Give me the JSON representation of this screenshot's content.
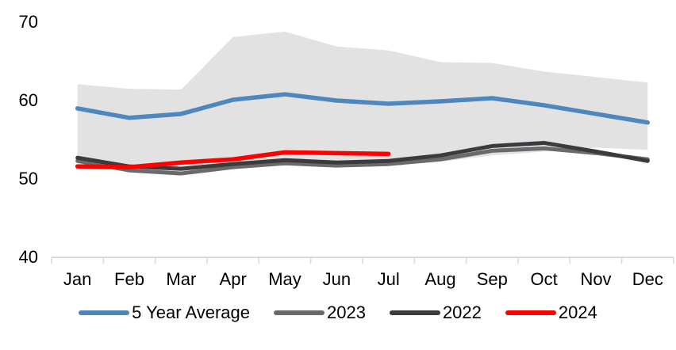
{
  "chart_data": {
    "type": "line",
    "title": "",
    "xlabel": "",
    "ylabel": "",
    "categories": [
      "Jan",
      "Feb",
      "Mar",
      "Apr",
      "May",
      "Jun",
      "Jul",
      "Aug",
      "Sep",
      "Oct",
      "Nov",
      "Dec"
    ],
    "y_ticks": [
      70,
      60,
      50,
      40
    ],
    "ylim": [
      40,
      70
    ],
    "grid": false,
    "legend_position": "bottom",
    "axis_color": "#D9D9D9",
    "text_color": "#000000",
    "band": {
      "name": "5 Year Range",
      "color": "#E2E2E2",
      "top": [
        62.1,
        61.5,
        61.4,
        68.1,
        68.8,
        66.9,
        66.4,
        64.9,
        64.8,
        63.7,
        63.0,
        62.3
      ],
      "bottom": [
        52.5,
        51.2,
        50.5,
        51.3,
        51.9,
        51.6,
        51.7,
        52.2,
        53.0,
        53.5,
        54.0,
        53.7
      ]
    },
    "series": [
      {
        "name": "5 Year Average",
        "color": "#4E87BD",
        "values": [
          59.0,
          57.8,
          58.3,
          60.1,
          60.8,
          60.0,
          59.6,
          59.9,
          60.3,
          59.4,
          58.3,
          57.2
        ]
      },
      {
        "name": "2023",
        "color": "#6A6A6E",
        "values": [
          52.3,
          51.1,
          50.7,
          51.5,
          52.0,
          51.7,
          51.9,
          52.5,
          53.6,
          53.9,
          53.3,
          52.5
        ]
      },
      {
        "name": "2022",
        "color": "#3B3B3D",
        "values": [
          52.7,
          51.6,
          51.3,
          51.9,
          52.4,
          52.1,
          52.3,
          53.0,
          54.2,
          54.6,
          53.5,
          52.3
        ]
      },
      {
        "name": "2024",
        "color": "#FF0000",
        "values": [
          51.6,
          51.5,
          52.1,
          52.5,
          53.4,
          53.3,
          53.2
        ]
      }
    ]
  }
}
